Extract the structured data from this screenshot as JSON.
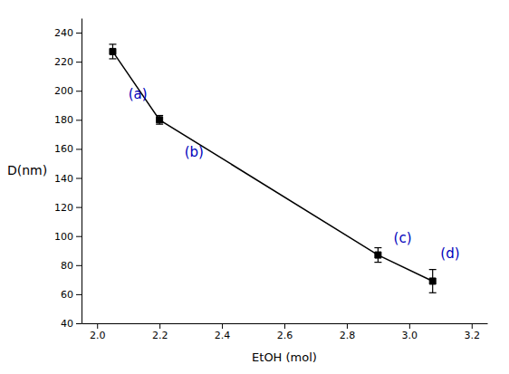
{
  "chart_data": {
    "type": "line",
    "x": [
      2.05,
      2.2,
      2.9,
      3.075
    ],
    "values": [
      227,
      180,
      87,
      69
    ],
    "errors": [
      5,
      3,
      5,
      8
    ],
    "color": "#000000",
    "marker": "square",
    "line_style": "solid",
    "xlabel": "EtOH (mol)",
    "ylabel": "D(nm)",
    "annotations": [
      {
        "label": "(a)",
        "x": 2.1,
        "y": 198,
        "color": "#0000bb"
      },
      {
        "label": "(b)",
        "x": 2.28,
        "y": 158,
        "color": "#0000bb"
      },
      {
        "label": "(c)",
        "x": 2.95,
        "y": 99,
        "color": "#0000bb"
      },
      {
        "label": "(d)",
        "x": 3.1,
        "y": 88,
        "color": "#0000bb"
      }
    ],
    "xlim": [
      1.95,
      3.25
    ],
    "ylim": [
      40,
      250
    ],
    "xticks": [
      {
        "value": 2.0,
        "label": "2.0"
      },
      {
        "value": 2.2,
        "label": "2.2"
      },
      {
        "value": 2.4,
        "label": "2.4"
      },
      {
        "value": 2.6,
        "label": "2.6"
      },
      {
        "value": 2.8,
        "label": "2.8"
      },
      {
        "value": 3.0,
        "label": "3.0"
      },
      {
        "value": 3.2,
        "label": "3.2"
      }
    ],
    "yticks": [
      40,
      60,
      80,
      100,
      120,
      140,
      160,
      180,
      200,
      220,
      240
    ]
  }
}
